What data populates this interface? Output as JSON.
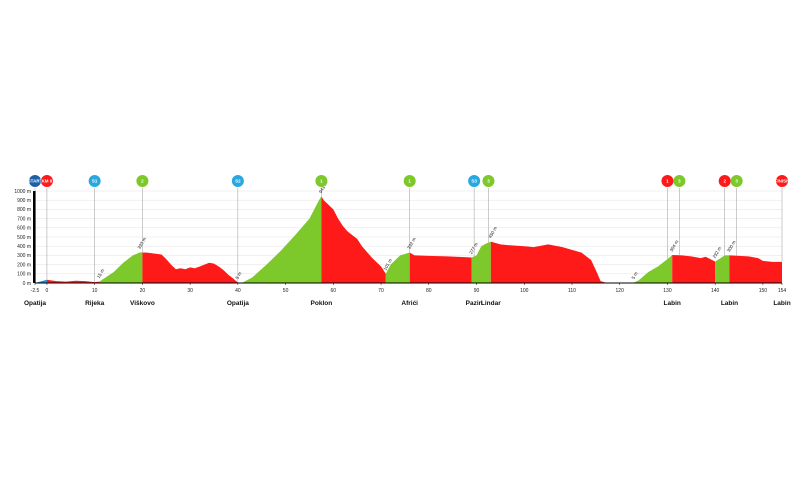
{
  "chart_data": {
    "type": "area",
    "xlim": [
      -2.5,
      154
    ],
    "ylim": [
      0,
      1000
    ],
    "x_ticks": [
      -2.5,
      0,
      10,
      20,
      30,
      40,
      50,
      60,
      70,
      80,
      90,
      100,
      110,
      120,
      130,
      140,
      150,
      154
    ],
    "y_ticks": [
      0,
      100,
      200,
      300,
      400,
      500,
      600,
      700,
      800,
      900,
      1000
    ],
    "y_unit": "m",
    "profile": [
      [
        -2.5,
        0
      ],
      [
        0,
        35
      ],
      [
        2,
        20
      ],
      [
        4,
        15
      ],
      [
        6,
        25
      ],
      [
        8,
        20
      ],
      [
        10,
        10
      ],
      [
        11,
        15
      ],
      [
        12,
        50
      ],
      [
        14,
        120
      ],
      [
        16,
        220
      ],
      [
        18,
        300
      ],
      [
        19.5,
        333
      ],
      [
        21,
        330
      ],
      [
        24,
        310
      ],
      [
        25,
        260
      ],
      [
        26,
        200
      ],
      [
        27,
        150
      ],
      [
        28,
        160
      ],
      [
        29,
        150
      ],
      [
        30,
        170
      ],
      [
        31,
        160
      ],
      [
        32,
        180
      ],
      [
        33,
        200
      ],
      [
        34,
        220
      ],
      [
        35,
        210
      ],
      [
        36,
        180
      ],
      [
        37,
        140
      ],
      [
        38,
        90
      ],
      [
        39,
        50
      ],
      [
        40,
        5
      ],
      [
        41,
        5
      ],
      [
        43,
        60
      ],
      [
        46,
        200
      ],
      [
        49,
        350
      ],
      [
        52,
        520
      ],
      [
        55,
        700
      ],
      [
        57,
        900
      ],
      [
        57.5,
        941
      ],
      [
        58,
        900
      ],
      [
        60,
        800
      ],
      [
        61,
        700
      ],
      [
        62,
        620
      ],
      [
        63,
        560
      ],
      [
        65,
        480
      ],
      [
        66,
        400
      ],
      [
        68,
        280
      ],
      [
        70,
        180
      ],
      [
        71,
        101
      ],
      [
        72,
        200
      ],
      [
        74,
        300
      ],
      [
        76,
        332
      ],
      [
        77,
        300
      ],
      [
        80,
        295
      ],
      [
        84,
        290
      ],
      [
        88,
        280
      ],
      [
        89,
        277
      ],
      [
        90,
        300
      ],
      [
        91,
        400
      ],
      [
        92,
        430
      ],
      [
        93,
        450
      ],
      [
        95,
        420
      ],
      [
        97,
        410
      ],
      [
        100,
        400
      ],
      [
        102,
        390
      ],
      [
        105,
        420
      ],
      [
        108,
        390
      ],
      [
        110,
        360
      ],
      [
        112,
        330
      ],
      [
        114,
        250
      ],
      [
        115,
        140
      ],
      [
        116,
        20
      ],
      [
        117,
        5
      ],
      [
        120,
        5
      ],
      [
        122,
        5
      ],
      [
        123,
        5
      ],
      [
        124,
        30
      ],
      [
        126,
        120
      ],
      [
        128,
        180
      ],
      [
        130,
        260
      ],
      [
        131,
        304
      ],
      [
        133,
        300
      ],
      [
        135,
        290
      ],
      [
        137,
        270
      ],
      [
        138,
        285
      ],
      [
        139,
        260
      ],
      [
        140,
        232
      ],
      [
        142,
        300
      ],
      [
        143,
        300
      ],
      [
        145,
        295
      ],
      [
        147,
        290
      ],
      [
        149,
        270
      ],
      [
        150,
        240
      ],
      [
        152,
        230
      ],
      [
        154,
        230
      ]
    ],
    "segments": [
      {
        "from": -2.5,
        "to": 0,
        "color": "#1a8cd8"
      },
      {
        "from": 0,
        "to": 11,
        "color": "#ff1a1a"
      },
      {
        "from": 11,
        "to": 20,
        "color": "#7dc82a"
      },
      {
        "from": 20,
        "to": 41,
        "color": "#ff1a1a"
      },
      {
        "from": 41,
        "to": 57.5,
        "color": "#7dc82a"
      },
      {
        "from": 57.5,
        "to": 71,
        "color": "#ff1a1a"
      },
      {
        "from": 71,
        "to": 76,
        "color": "#7dc82a"
      },
      {
        "from": 76,
        "to": 89,
        "color": "#ff1a1a"
      },
      {
        "from": 89,
        "to": 93,
        "color": "#7dc82a"
      },
      {
        "from": 93,
        "to": 117,
        "color": "#ff1a1a"
      },
      {
        "from": 117,
        "to": 123,
        "color": "#2a2a2a"
      },
      {
        "from": 123,
        "to": 131,
        "color": "#7dc82a"
      },
      {
        "from": 131,
        "to": 140,
        "color": "#ff1a1a"
      },
      {
        "from": 140,
        "to": 143,
        "color": "#7dc82a"
      },
      {
        "from": 143,
        "to": 154,
        "color": "#ff1a1a"
      }
    ],
    "places": [
      {
        "x": -2.5,
        "label": "Opatija"
      },
      {
        "x": 10,
        "label": "Rijeka"
      },
      {
        "x": 20,
        "label": "Viškovo"
      },
      {
        "x": 40,
        "label": "Opatija"
      },
      {
        "x": 57.5,
        "label": "Poklon"
      },
      {
        "x": 76,
        "label": "Afrići"
      },
      {
        "x": 89.5,
        "label": "Pazin"
      },
      {
        "x": 93,
        "label": "Lindar"
      },
      {
        "x": 131,
        "label": "Labin"
      },
      {
        "x": 143,
        "label": "Labin"
      },
      {
        "x": 154,
        "label": "Labin"
      }
    ],
    "altitude_labels": [
      {
        "x": 11,
        "text": "15 m"
      },
      {
        "x": 19.5,
        "text": "333 m"
      },
      {
        "x": 40,
        "text": "5 m"
      },
      {
        "x": 57.5,
        "text": "941 m"
      },
      {
        "x": 71,
        "text": "101 m"
      },
      {
        "x": 76,
        "text": "332 m"
      },
      {
        "x": 89,
        "text": "277 m"
      },
      {
        "x": 93,
        "text": "450 m"
      },
      {
        "x": 123,
        "text": "5 m"
      },
      {
        "x": 131,
        "text": "304 m"
      },
      {
        "x": 140,
        "text": "232 m"
      },
      {
        "x": 143,
        "text": "300 m"
      }
    ],
    "markers": [
      {
        "x": -2.5,
        "text": "START",
        "color": "#1f5fa8",
        "shape": "circle"
      },
      {
        "x": 0,
        "text": "KM 0",
        "color": "#ff1a1a",
        "shape": "circle"
      },
      {
        "x": 10,
        "text": "S1",
        "color": "#29a8e0",
        "shape": "circle"
      },
      {
        "x": 20,
        "text": "2",
        "color": "#7dc82a",
        "shape": "circle"
      },
      {
        "x": 40,
        "text": "S2",
        "color": "#29a8e0",
        "shape": "circle"
      },
      {
        "x": 57.5,
        "text": "1",
        "color": "#7dc82a",
        "shape": "circle"
      },
      {
        "x": 76,
        "text": "1",
        "color": "#7dc82a",
        "shape": "circle"
      },
      {
        "x": 89.5,
        "text": "S3",
        "color": "#29a8e0",
        "shape": "circle"
      },
      {
        "x": 92.5,
        "text": "3",
        "color": "#7dc82a",
        "shape": "circle"
      },
      {
        "x": 130,
        "text": "1",
        "color": "#ff1a1a",
        "shape": "circle"
      },
      {
        "x": 132.5,
        "text": "3",
        "color": "#7dc82a",
        "shape": "circle"
      },
      {
        "x": 142,
        "text": "2",
        "color": "#ff1a1a",
        "shape": "circle"
      },
      {
        "x": 144.5,
        "text": "3",
        "color": "#7dc82a",
        "shape": "circle"
      },
      {
        "x": 154,
        "text": "FINISH",
        "color": "#ff1a1a",
        "shape": "circle"
      }
    ]
  }
}
